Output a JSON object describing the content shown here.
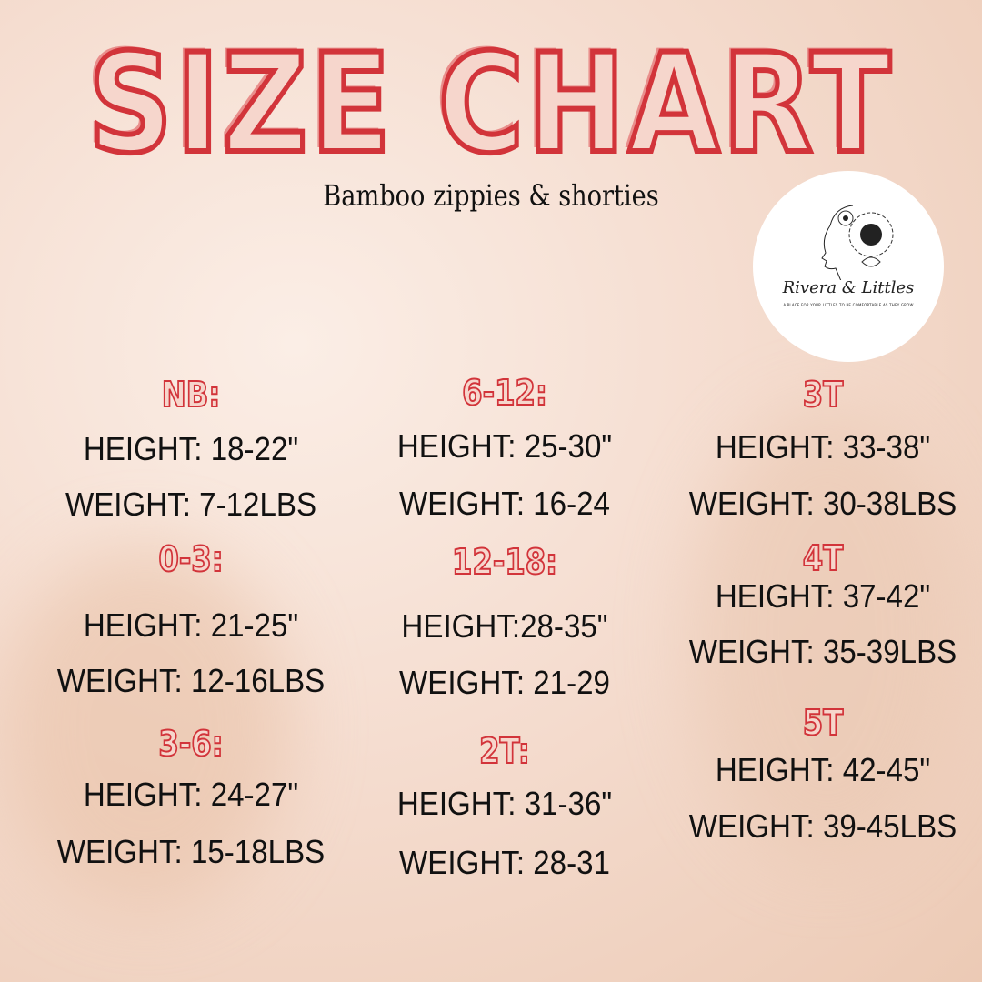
{
  "title": "SIZE CHART",
  "subtitle": "Bamboo zippies & shorties",
  "logo": {
    "brand": "Rivera & Littles",
    "tagline": "A PLACE FOR YOUR LITTLES TO BE COMFORTABLE AS THEY GROW",
    "icon": "sunflower-woman-icon"
  },
  "colors": {
    "accent": "#d2343a",
    "text": "#111111",
    "background": "#f5ddd0"
  },
  "columns": [
    {
      "sizes": [
        {
          "label": "NB:",
          "height": "HEIGHT: 18-22\"",
          "weight": "WEIGHT: 7-12LBS"
        },
        {
          "label": "0-3:",
          "height": "HEIGHT: 21-25\"",
          "weight": "WEIGHT: 12-16LBS"
        },
        {
          "label": "3-6:",
          "height": "HEIGHT: 24-27\"",
          "weight": "WEIGHT: 15-18LBS"
        }
      ]
    },
    {
      "sizes": [
        {
          "label": "6-12:",
          "height": "HEIGHT: 25-30\"",
          "weight": "WEIGHT: 16-24"
        },
        {
          "label": "12-18:",
          "height": "HEIGHT:28-35\"",
          "weight": "WEIGHT: 21-29"
        },
        {
          "label": "2T:",
          "height": "HEIGHT: 31-36\"",
          "weight": "WEIGHT: 28-31"
        }
      ]
    },
    {
      "sizes": [
        {
          "label": "3T",
          "height": "HEIGHT: 33-38\"",
          "weight": "WEIGHT: 30-38LBS"
        },
        {
          "label": "4T",
          "height": "HEIGHT: 37-42\"",
          "weight": "WEIGHT: 35-39LBS"
        },
        {
          "label": "5T",
          "height": "HEIGHT: 42-45\"",
          "weight": "WEIGHT: 39-45LBS"
        }
      ]
    }
  ]
}
